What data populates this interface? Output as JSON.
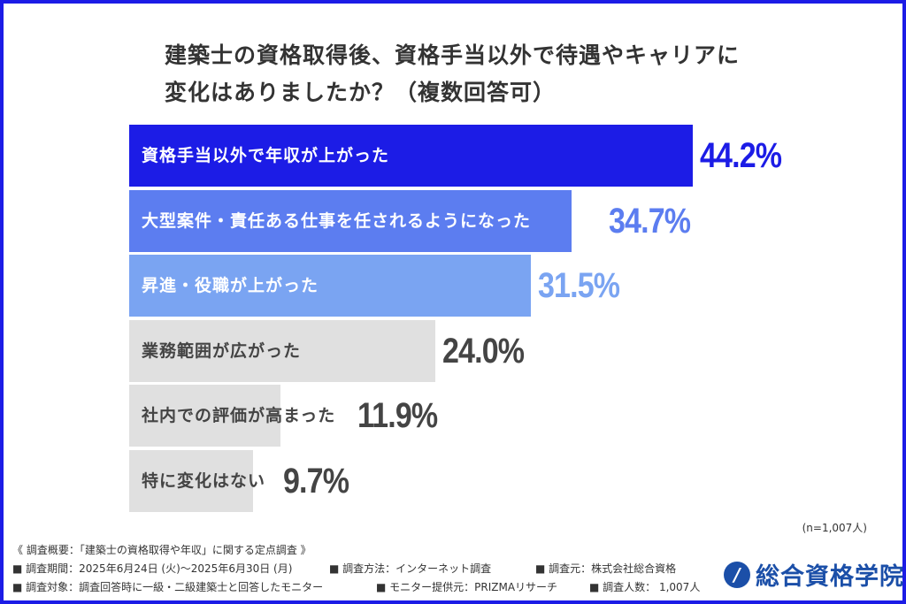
{
  "title_lines": [
    "建築士の資格取得後、資格手当以外で待遇やキャリアに",
    "変化はありましたか？（複数回答可）"
  ],
  "chart_data": {
    "type": "bar",
    "orientation": "horizontal",
    "title": "建築士の資格取得後、資格手当以外で待遇やキャリアに変化はありましたか？（複数回答可）",
    "categories": [
      "資格手当以外で年収が上がった",
      "大型案件・責任ある仕事を任されるようになった",
      "昇進・役職が上がった",
      "業務範囲が広がった",
      "社内での評価が高まった",
      "特に変化はない"
    ],
    "values": [
      44.2,
      34.7,
      31.5,
      24.0,
      11.9,
      9.7
    ],
    "value_labels": [
      "44.2%",
      "34.7%",
      "31.5%",
      "24.0%",
      "11.9%",
      "9.7%"
    ],
    "unit": "%",
    "bar_colors": [
      "#1c1ce6",
      "#5c7df0",
      "#7aa4f2",
      "#e0e0e0",
      "#e0e0e0",
      "#e0e0e0"
    ],
    "label_colors": [
      "#ffffff",
      "#ffffff",
      "#ffffff",
      "#444444",
      "#444444",
      "#444444"
    ],
    "value_colors": [
      "#1c1ce6",
      "#5c7df0",
      "#7aa4f2",
      "#444444",
      "#444444",
      "#444444"
    ],
    "grid": false
  },
  "sample_note": "(n=1,007人)",
  "footer": {
    "heading": "《 調査概要：「建築士の資格取得や年収」に関する定点調査 》",
    "period": "■ 調査期間：2025年6月24日 (火)～2025年6月30日 (月)",
    "method": "■ 調査方法：インターネット調査",
    "source": "■ 調査元：株式会社総合資格",
    "target": "■ 調査対象：調査回答時に一級・二級建築士と回答したモニター",
    "provider": "■ モニター提供元：PRIZMAリサーチ",
    "count": "■ 調査人数： 1,007人"
  },
  "logo": {
    "text": "総合資格学院",
    "brand_color": "#1b4fa8"
  },
  "frame_color": "#1c1ce6"
}
